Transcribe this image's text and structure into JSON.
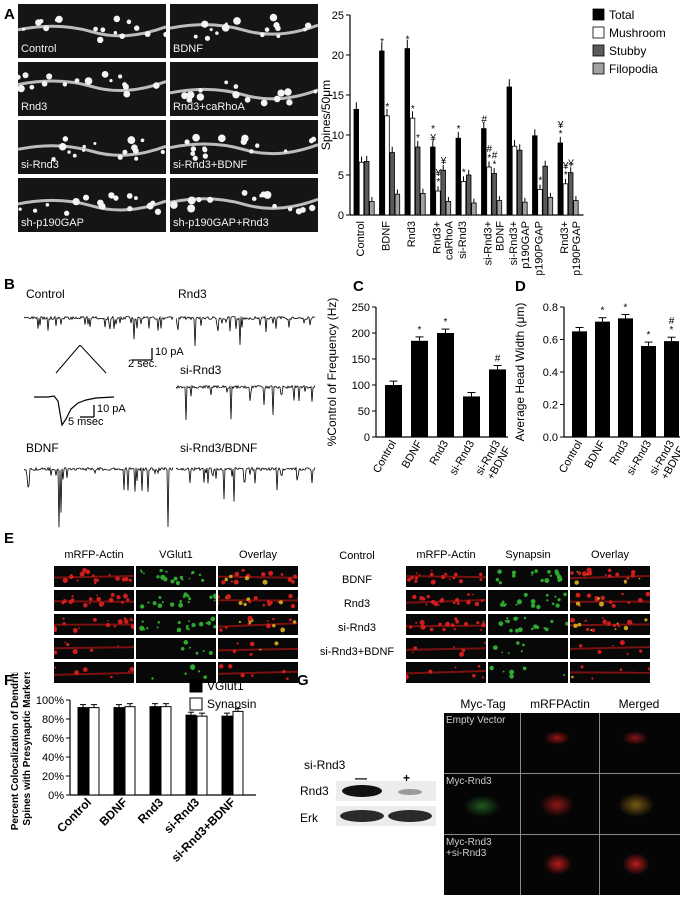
{
  "panel_labels": [
    "A",
    "B",
    "C",
    "D",
    "E",
    "F",
    "G"
  ],
  "panelA": {
    "images": [
      "Control",
      "BDNF",
      "Rnd3",
      "Rnd3+caRhoA",
      "si-Rnd3",
      "si-Rnd3+BDNF",
      "sh-p190GAP",
      "sh-p190GAP+Rnd3"
    ]
  },
  "panelB": {
    "traces": [
      "Control",
      "Rnd3",
      "si-Rnd3",
      "BDNF",
      "si-Rnd3/BDNF"
    ],
    "scale1_y": "10 pA",
    "scale1_x": "2 sec.",
    "scale2_y": "10 pA",
    "scale2_x": "5 msec"
  },
  "panelE": {
    "left_headers": [
      "mRFP-Actin",
      "VGlut1",
      "Overlay"
    ],
    "right_headers": [
      "mRFP-Actin",
      "Synapsin",
      "Overlay"
    ],
    "rows": [
      "Control",
      "BDNF",
      "Rnd3",
      "si-Rnd3",
      "si-Rnd3+BDNF"
    ]
  },
  "panelG": {
    "blot_header": "si-Rnd3",
    "lane_marks": [
      "—",
      "+"
    ],
    "bands": [
      "Rnd3",
      "Erk"
    ],
    "headers": [
      "Myc-Tag",
      "mRFPActin",
      "Merged"
    ],
    "rows": [
      "Empty Vector",
      "Myc-Rnd3",
      "Myc-Rnd3\n+si-Rnd3"
    ]
  },
  "chart_data": [
    {
      "id": "A",
      "type": "bar",
      "ylabel": "Spines/50μm",
      "ylim": [
        0,
        25
      ],
      "yticks": [
        0,
        5,
        10,
        15,
        20,
        25
      ],
      "categories": [
        "Control",
        "BDNF",
        "Rnd3",
        "Rnd3+\ncaRhoA",
        "si-Rnd3",
        "si-Rnd3+\nBDNF",
        "si-Rnd3+\np190GAP",
        "sh-p190PGAP",
        "Rnd3+\nsh-p190PGAP"
      ],
      "series": [
        {
          "name": "Total",
          "color": "#000000",
          "values": [
            13.2,
            20.5,
            20.8,
            8.5,
            9.6,
            10.8,
            16.0,
            9.9,
            9.0
          ]
        },
        {
          "name": "Mushroom",
          "color": "#ffffff",
          "values": [
            6.6,
            12.4,
            12.1,
            3.0,
            4.2,
            6.0,
            8.6,
            3.2,
            3.9
          ]
        },
        {
          "name": "Stubby",
          "color": "#5a5a5a",
          "values": [
            6.7,
            7.8,
            8.5,
            5.6,
            5.0,
            5.2,
            8.1,
            6.1,
            5.3
          ]
        },
        {
          "name": "Filopodia",
          "color": "#a0a0a0",
          "values": [
            1.7,
            2.6,
            2.7,
            1.7,
            1.5,
            1.8,
            1.6,
            2.2,
            1.8
          ]
        }
      ],
      "markers": [
        {
          "c": 1,
          "s": 0,
          "t": "*"
        },
        {
          "c": 1,
          "s": 1,
          "t": "*"
        },
        {
          "c": 2,
          "s": 0,
          "t": "*"
        },
        {
          "c": 2,
          "s": 1,
          "t": "*"
        },
        {
          "c": 2,
          "s": 2,
          "t": "*"
        },
        {
          "c": 3,
          "s": 0,
          "t": "*\n¥"
        },
        {
          "c": 3,
          "s": 1,
          "t": "¥\n*"
        },
        {
          "c": 3,
          "s": 2,
          "t": "¥"
        },
        {
          "c": 4,
          "s": 0,
          "t": "*"
        },
        {
          "c": 4,
          "s": 1,
          "t": "*"
        },
        {
          "c": 5,
          "s": 0,
          "t": "#"
        },
        {
          "c": 5,
          "s": 1,
          "t": "#\n*"
        },
        {
          "c": 5,
          "s": 2,
          "t": "#\n*"
        },
        {
          "c": 7,
          "s": 1,
          "t": "*"
        },
        {
          "c": 8,
          "s": 0,
          "t": "¥\n*"
        },
        {
          "c": 8,
          "s": 1,
          "t": "¥\n*"
        },
        {
          "c": 8,
          "s": 2,
          "t": "¥"
        }
      ],
      "legend": "top-right"
    },
    {
      "id": "C",
      "type": "bar",
      "ylabel": "%Control of Frequency (Hz)",
      "ylim": [
        0,
        250
      ],
      "yticks": [
        0,
        50,
        100,
        150,
        200,
        250
      ],
      "categories": [
        "Control",
        "BDNF",
        "Rnd3",
        "si-Rnd3",
        "si-Rnd3\n+BDNF"
      ],
      "values": [
        100,
        185,
        200,
        78,
        130
      ],
      "markers": [
        "",
        "*",
        "*",
        "",
        "#"
      ]
    },
    {
      "id": "D",
      "type": "bar",
      "ylabel": "Average Head Width (μm)",
      "ylim": [
        0.0,
        0.8
      ],
      "yticks": [
        0.0,
        0.2,
        0.4,
        0.6,
        0.8
      ],
      "categories": [
        "Control",
        "BDNF",
        "Rnd3",
        "si-Rnd3",
        "si-Rnd3\n+BDNF"
      ],
      "values": [
        0.65,
        0.71,
        0.73,
        0.56,
        0.59
      ],
      "markers": [
        "",
        "*",
        "*",
        "*",
        "#\n*"
      ]
    },
    {
      "id": "F",
      "type": "bar",
      "ylabel": "Percent Colocalization of Dendritic\nSpines with Presynaptic Markers",
      "ylim": [
        0,
        100
      ],
      "yticks": [
        0,
        20,
        40,
        60,
        80,
        100
      ],
      "ytick_suffix": "%",
      "categories": [
        "Control",
        "BDNF",
        "Rnd3",
        "si-Rnd3",
        "si-Rnd3+BDNF"
      ],
      "series": [
        {
          "name": "VGlut1",
          "color": "#000000",
          "values": [
            92,
            92,
            93,
            84,
            83
          ]
        },
        {
          "name": "Synapsin",
          "color": "#ffffff",
          "values": [
            92,
            93,
            93,
            83,
            88
          ]
        }
      ],
      "legend": "top-right"
    }
  ]
}
